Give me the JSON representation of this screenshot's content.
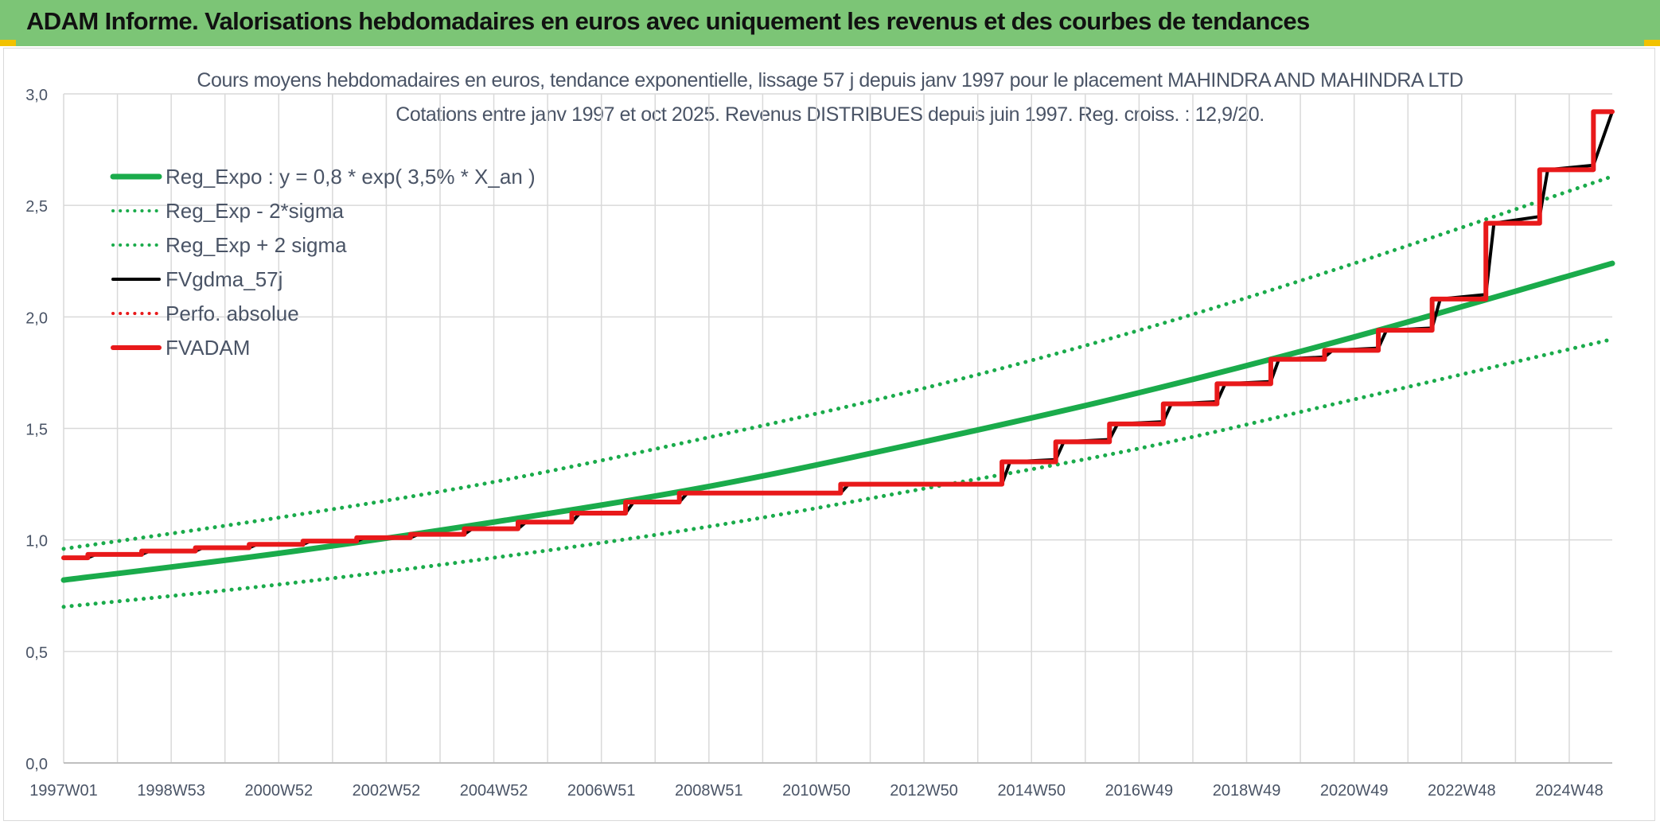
{
  "header": {
    "title": "ADAM Informe. Valorisations hebdomadaires en euros avec uniquement les revenus et des courbes de tendances"
  },
  "colors": {
    "header_bg": "#7cc576",
    "accent_corner": "#f2c200",
    "trend_green": "#1aab4b",
    "fv_black": "#000000",
    "adam_red": "#e8191a",
    "grid": "#d9d9d9",
    "text": "#4a5466"
  },
  "chart_data": {
    "type": "line",
    "title_lines": [
      "Cours moyens hebdomadaires en euros, tendance exponentielle, lissage 57 j depuis janv 1997 pour le placement MAHINDRA AND MAHINDRA LTD",
      "Cotations entre janv 1997 et oct 2025. Revenus DISTRIBUES depuis juin 1997. Reg. croiss. : 12,9/20."
    ],
    "xlabel": "",
    "ylabel": "",
    "x_range": [
      1997.0,
      2025.8
    ],
    "ylim": [
      0,
      3.0
    ],
    "y_ticks": [
      "0,0",
      "0,5",
      "1,0",
      "1,5",
      "2,0",
      "2,5",
      "3,0"
    ],
    "x_tick_labels": [
      "1997W01",
      "1998W53",
      "2000W52",
      "2002W52",
      "2004W52",
      "2006W51",
      "2008W51",
      "2010W50",
      "2012W50",
      "2014W50",
      "2016W49",
      "2018W49",
      "2020W49",
      "2022W48",
      "2024W48"
    ],
    "grid": true,
    "legend_position": "top-left",
    "series": [
      {
        "name": "Reg_Expo : y = 0,8 * exp( 3,5% *  X_an )",
        "style": "solid-thick",
        "color": "#1aab4b",
        "x": [
          1997.0,
          2001.0,
          2005.0,
          2009.0,
          2013.0,
          2017.0,
          2021.0,
          2025.8
        ],
        "values": [
          0.82,
          0.94,
          1.08,
          1.24,
          1.44,
          1.66,
          1.91,
          2.24
        ]
      },
      {
        "name": "Reg_Exp - 2*sigma",
        "style": "dotted",
        "color": "#1aab4b",
        "x": [
          1997.0,
          2001.0,
          2005.0,
          2009.0,
          2013.0,
          2017.0,
          2021.0,
          2025.8
        ],
        "values": [
          0.7,
          0.8,
          0.92,
          1.06,
          1.23,
          1.41,
          1.63,
          1.9
        ]
      },
      {
        "name": "Reg_Exp + 2 sigma",
        "style": "dotted",
        "color": "#1aab4b",
        "x": [
          1997.0,
          2001.0,
          2005.0,
          2009.0,
          2013.0,
          2017.0,
          2021.0,
          2025.8
        ],
        "values": [
          0.96,
          1.1,
          1.26,
          1.46,
          1.68,
          1.94,
          2.24,
          2.63
        ]
      },
      {
        "name": "FVgdma_57j",
        "style": "solid",
        "color": "#000000",
        "x": [
          1997.0,
          1997.45,
          1997.6,
          1998.45,
          1998.6,
          1999.45,
          1999.6,
          2000.45,
          2000.6,
          2001.45,
          2001.6,
          2002.45,
          2002.6,
          2003.45,
          2003.6,
          2004.45,
          2004.6,
          2005.45,
          2005.6,
          2006.45,
          2006.6,
          2007.45,
          2007.6,
          2008.45,
          2008.6,
          2011.45,
          2011.6,
          2014.45,
          2014.6,
          2015.45,
          2015.6,
          2016.45,
          2016.6,
          2017.45,
          2017.6,
          2018.45,
          2018.6,
          2019.45,
          2019.6,
          2020.45,
          2020.6,
          2021.45,
          2021.6,
          2022.45,
          2022.6,
          2023.45,
          2023.6,
          2024.45,
          2024.6,
          2025.45,
          2025.8
        ],
        "values": [
          0.92,
          0.92,
          0.935,
          0.935,
          0.95,
          0.95,
          0.965,
          0.965,
          0.98,
          0.98,
          0.995,
          0.995,
          1.01,
          1.01,
          1.025,
          1.025,
          1.05,
          1.05,
          1.08,
          1.08,
          1.12,
          1.12,
          1.17,
          1.17,
          1.21,
          1.21,
          1.25,
          1.25,
          1.35,
          1.36,
          1.44,
          1.45,
          1.52,
          1.53,
          1.61,
          1.62,
          1.7,
          1.71,
          1.81,
          1.82,
          1.85,
          1.86,
          1.94,
          1.95,
          2.08,
          2.1,
          2.42,
          2.45,
          2.66,
          2.68,
          2.92
        ]
      },
      {
        "name": "Perfo. absolue",
        "style": "dotted",
        "color": "#e8191a",
        "x": [],
        "values": []
      },
      {
        "name": "FVADAM",
        "style": "step-thick",
        "color": "#e8191a",
        "x": [
          1997.0,
          1997.45,
          1998.45,
          1999.45,
          2000.45,
          2001.45,
          2002.45,
          2003.45,
          2004.45,
          2005.45,
          2006.45,
          2007.45,
          2008.45,
          2011.45,
          2014.45,
          2015.45,
          2016.45,
          2017.45,
          2018.45,
          2019.45,
          2020.45,
          2021.45,
          2022.45,
          2023.45,
          2024.45,
          2025.45,
          2025.8
        ],
        "values": [
          0.92,
          0.935,
          0.95,
          0.965,
          0.98,
          0.995,
          1.01,
          1.025,
          1.05,
          1.08,
          1.12,
          1.17,
          1.21,
          1.25,
          1.35,
          1.44,
          1.52,
          1.61,
          1.7,
          1.81,
          1.85,
          1.94,
          2.08,
          2.42,
          2.66,
          2.92,
          2.92
        ]
      }
    ]
  }
}
